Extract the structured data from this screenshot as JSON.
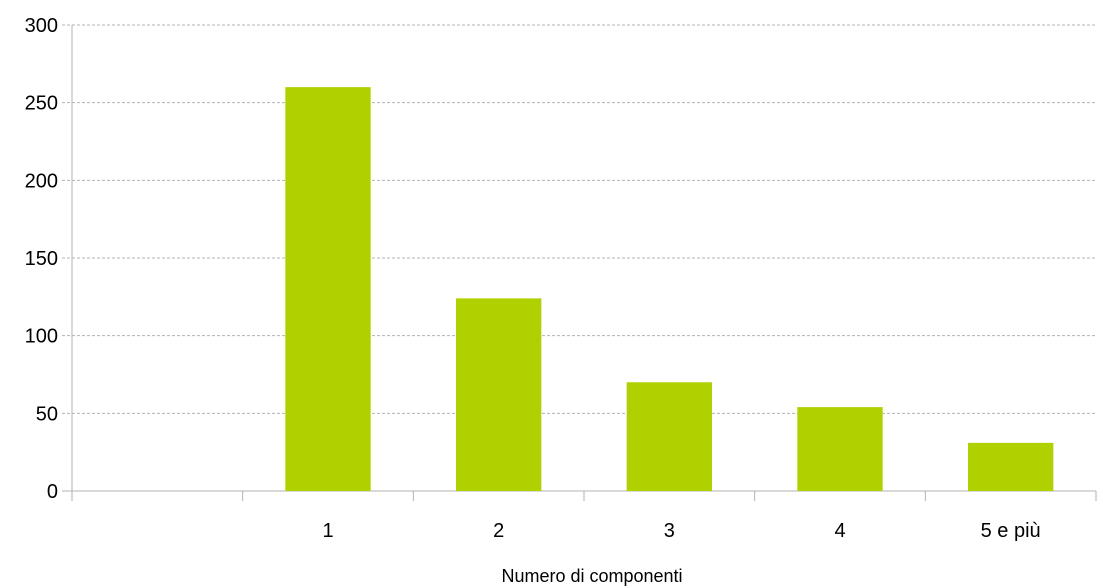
{
  "chart_data": {
    "type": "bar",
    "categories": [
      "",
      "1",
      "2",
      "3",
      "4",
      "5 e più"
    ],
    "values": [
      null,
      260,
      124,
      70,
      54,
      31
    ],
    "xlabel": "Numero di componenti",
    "ylabel": "",
    "ylim": [
      0,
      300
    ],
    "yticks": [
      0,
      50,
      100,
      150,
      200,
      250,
      300
    ],
    "grid": true,
    "bar_color": "#b0d000",
    "grid_color": "#b3b3b3"
  }
}
